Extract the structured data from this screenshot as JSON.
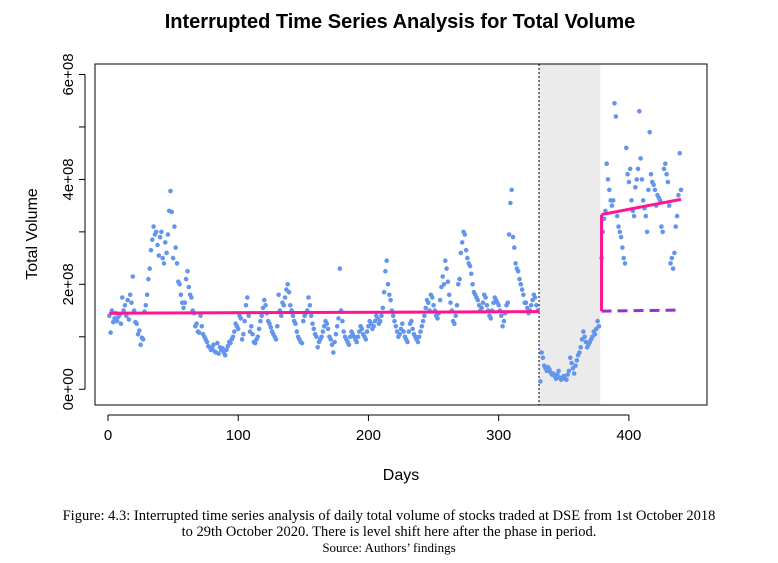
{
  "chart_data": {
    "type": "scatter",
    "title": "Interrupted Time Series Analysis for Total Volume",
    "xlabel": "Days",
    "ylabel": "Total Volume",
    "xlim": [
      -10,
      460
    ],
    "ylim": [
      -30000000,
      620000000
    ],
    "x_ticks": [
      0,
      100,
      200,
      300,
      400
    ],
    "x_tick_labels": [
      "0",
      "100",
      "200",
      "300",
      "400"
    ],
    "y_ticks": [
      0,
      200000000,
      400000000,
      600000000
    ],
    "y_tick_labels": [
      "0e+00",
      "2e+08",
      "4e+08",
      "6e+08"
    ],
    "intervention_start": 331,
    "intervention_end": 378,
    "point_color": "#6495ED",
    "fit_color": "#FF1493",
    "counterfactual_color": "#9932CC",
    "shade_color": "#EBEBEB",
    "points": [
      [
        1,
        140
      ],
      [
        2,
        108
      ],
      [
        3,
        150
      ],
      [
        4,
        128
      ],
      [
        5,
        135
      ],
      [
        6,
        145
      ],
      [
        7,
        130
      ],
      [
        8,
        138
      ],
      [
        9,
        142
      ],
      [
        10,
        125
      ],
      [
        11,
        175
      ],
      [
        12,
        150
      ],
      [
        13,
        160
      ],
      [
        14,
        140
      ],
      [
        15,
        170
      ],
      [
        16,
        133
      ],
      [
        17,
        180
      ],
      [
        18,
        165
      ],
      [
        19,
        215
      ],
      [
        20,
        150
      ],
      [
        21,
        128
      ],
      [
        22,
        125
      ],
      [
        23,
        105
      ],
      [
        24,
        112
      ],
      [
        25,
        85
      ],
      [
        26,
        98
      ],
      [
        27,
        95
      ],
      [
        28,
        148
      ],
      [
        29,
        160
      ],
      [
        30,
        180
      ],
      [
        31,
        210
      ],
      [
        32,
        230
      ],
      [
        33,
        265
      ],
      [
        34,
        285
      ],
      [
        35,
        310
      ],
      [
        36,
        295
      ],
      [
        37,
        300
      ],
      [
        38,
        275
      ],
      [
        39,
        255
      ],
      [
        40,
        290
      ],
      [
        41,
        300
      ],
      [
        42,
        250
      ],
      [
        43,
        240
      ],
      [
        44,
        280
      ],
      [
        45,
        260
      ],
      [
        46,
        295
      ],
      [
        47,
        340
      ],
      [
        48,
        378
      ],
      [
        49,
        338
      ],
      [
        50,
        250
      ],
      [
        51,
        310
      ],
      [
        52,
        270
      ],
      [
        53,
        240
      ],
      [
        54,
        205
      ],
      [
        55,
        200
      ],
      [
        56,
        180
      ],
      [
        57,
        165
      ],
      [
        58,
        155
      ],
      [
        59,
        165
      ],
      [
        60,
        210
      ],
      [
        61,
        225
      ],
      [
        62,
        195
      ],
      [
        63,
        180
      ],
      [
        64,
        175
      ],
      [
        65,
        150
      ],
      [
        66,
        145
      ],
      [
        67,
        120
      ],
      [
        68,
        125
      ],
      [
        69,
        110
      ],
      [
        70,
        108
      ],
      [
        71,
        140
      ],
      [
        72,
        120
      ],
      [
        73,
        105
      ],
      [
        74,
        100
      ],
      [
        75,
        95
      ],
      [
        76,
        90
      ],
      [
        77,
        82
      ],
      [
        78,
        80
      ],
      [
        79,
        75
      ],
      [
        80,
        78
      ],
      [
        81,
        85
      ],
      [
        82,
        72
      ],
      [
        83,
        70
      ],
      [
        84,
        88
      ],
      [
        85,
        68
      ],
      [
        86,
        80
      ],
      [
        87,
        75
      ],
      [
        88,
        78
      ],
      [
        89,
        70
      ],
      [
        90,
        65
      ],
      [
        91,
        75
      ],
      [
        92,
        82
      ],
      [
        93,
        90
      ],
      [
        94,
        88
      ],
      [
        95,
        95
      ],
      [
        96,
        100
      ],
      [
        97,
        110
      ],
      [
        98,
        125
      ],
      [
        99,
        120
      ],
      [
        100,
        115
      ],
      [
        101,
        140
      ],
      [
        102,
        135
      ],
      [
        103,
        95
      ],
      [
        104,
        105
      ],
      [
        105,
        130
      ],
      [
        106,
        160
      ],
      [
        107,
        175
      ],
      [
        108,
        140
      ],
      [
        109,
        110
      ],
      [
        110,
        120
      ],
      [
        111,
        105
      ],
      [
        112,
        90
      ],
      [
        113,
        88
      ],
      [
        114,
        95
      ],
      [
        115,
        100
      ],
      [
        116,
        115
      ],
      [
        117,
        130
      ],
      [
        118,
        140
      ],
      [
        119,
        155
      ],
      [
        120,
        170
      ],
      [
        121,
        160
      ],
      [
        122,
        145
      ],
      [
        123,
        130
      ],
      [
        124,
        125
      ],
      [
        125,
        118
      ],
      [
        126,
        110
      ],
      [
        127,
        105
      ],
      [
        128,
        100
      ],
      [
        129,
        95
      ],
      [
        130,
        120
      ],
      [
        131,
        180
      ],
      [
        132,
        150
      ],
      [
        133,
        140
      ],
      [
        134,
        165
      ],
      [
        135,
        160
      ],
      [
        136,
        175
      ],
      [
        137,
        190
      ],
      [
        138,
        200
      ],
      [
        139,
        185
      ],
      [
        140,
        160
      ],
      [
        141,
        150
      ],
      [
        142,
        140
      ],
      [
        143,
        130
      ],
      [
        144,
        125
      ],
      [
        145,
        110
      ],
      [
        146,
        100
      ],
      [
        147,
        95
      ],
      [
        148,
        90
      ],
      [
        149,
        88
      ],
      [
        150,
        130
      ],
      [
        151,
        140
      ],
      [
        152,
        145
      ],
      [
        153,
        150
      ],
      [
        154,
        175
      ],
      [
        155,
        160
      ],
      [
        156,
        140
      ],
      [
        157,
        125
      ],
      [
        158,
        115
      ],
      [
        159,
        105
      ],
      [
        160,
        100
      ],
      [
        161,
        80
      ],
      [
        162,
        90
      ],
      [
        163,
        95
      ],
      [
        164,
        100
      ],
      [
        165,
        110
      ],
      [
        166,
        120
      ],
      [
        167,
        130
      ],
      [
        168,
        125
      ],
      [
        169,
        115
      ],
      [
        170,
        100
      ],
      [
        171,
        95
      ],
      [
        172,
        85
      ],
      [
        173,
        70
      ],
      [
        174,
        90
      ],
      [
        175,
        105
      ],
      [
        176,
        120
      ],
      [
        177,
        135
      ],
      [
        178,
        230
      ],
      [
        179,
        150
      ],
      [
        180,
        130
      ],
      [
        181,
        110
      ],
      [
        182,
        100
      ],
      [
        183,
        95
      ],
      [
        184,
        90
      ],
      [
        185,
        85
      ],
      [
        186,
        100
      ],
      [
        187,
        110
      ],
      [
        188,
        105
      ],
      [
        189,
        100
      ],
      [
        190,
        95
      ],
      [
        191,
        90
      ],
      [
        192,
        100
      ],
      [
        193,
        110
      ],
      [
        194,
        120
      ],
      [
        195,
        115
      ],
      [
        196,
        105
      ],
      [
        197,
        100
      ],
      [
        198,
        95
      ],
      [
        199,
        110
      ],
      [
        200,
        120
      ],
      [
        201,
        130
      ],
      [
        202,
        125
      ],
      [
        203,
        115
      ],
      [
        204,
        120
      ],
      [
        205,
        130
      ],
      [
        206,
        140
      ],
      [
        207,
        135
      ],
      [
        208,
        125
      ],
      [
        209,
        130
      ],
      [
        210,
        140
      ],
      [
        211,
        155
      ],
      [
        212,
        185
      ],
      [
        213,
        225
      ],
      [
        214,
        245
      ],
      [
        215,
        200
      ],
      [
        216,
        180
      ],
      [
        217,
        170
      ],
      [
        218,
        150
      ],
      [
        219,
        140
      ],
      [
        220,
        130
      ],
      [
        221,
        120
      ],
      [
        222,
        110
      ],
      [
        223,
        100
      ],
      [
        224,
        105
      ],
      [
        225,
        115
      ],
      [
        226,
        125
      ],
      [
        227,
        110
      ],
      [
        228,
        100
      ],
      [
        229,
        95
      ],
      [
        230,
        90
      ],
      [
        231,
        110
      ],
      [
        232,
        125
      ],
      [
        233,
        130
      ],
      [
        234,
        115
      ],
      [
        235,
        105
      ],
      [
        236,
        100
      ],
      [
        237,
        95
      ],
      [
        238,
        90
      ],
      [
        239,
        100
      ],
      [
        240,
        110
      ],
      [
        241,
        120
      ],
      [
        242,
        130
      ],
      [
        243,
        140
      ],
      [
        244,
        155
      ],
      [
        245,
        170
      ],
      [
        246,
        165
      ],
      [
        247,
        150
      ],
      [
        248,
        180
      ],
      [
        249,
        175
      ],
      [
        250,
        160
      ],
      [
        251,
        150
      ],
      [
        252,
        140
      ],
      [
        253,
        135
      ],
      [
        254,
        145
      ],
      [
        255,
        170
      ],
      [
        256,
        195
      ],
      [
        257,
        215
      ],
      [
        258,
        200
      ],
      [
        259,
        245
      ],
      [
        260,
        230
      ],
      [
        261,
        205
      ],
      [
        262,
        180
      ],
      [
        263,
        165
      ],
      [
        264,
        150
      ],
      [
        265,
        130
      ],
      [
        266,
        125
      ],
      [
        267,
        140
      ],
      [
        268,
        160
      ],
      [
        269,
        200
      ],
      [
        270,
        210
      ],
      [
        271,
        260
      ],
      [
        272,
        280
      ],
      [
        273,
        300
      ],
      [
        274,
        295
      ],
      [
        275,
        265
      ],
      [
        276,
        250
      ],
      [
        277,
        240
      ],
      [
        278,
        235
      ],
      [
        279,
        220
      ],
      [
        280,
        200
      ],
      [
        281,
        185
      ],
      [
        282,
        180
      ],
      [
        283,
        175
      ],
      [
        284,
        170
      ],
      [
        285,
        160
      ],
      [
        286,
        150
      ],
      [
        287,
        155
      ],
      [
        288,
        165
      ],
      [
        289,
        180
      ],
      [
        290,
        175
      ],
      [
        291,
        160
      ],
      [
        292,
        150
      ],
      [
        293,
        140
      ],
      [
        294,
        135
      ],
      [
        295,
        150
      ],
      [
        296,
        165
      ],
      [
        297,
        175
      ],
      [
        298,
        170
      ],
      [
        299,
        165
      ],
      [
        300,
        160
      ],
      [
        301,
        150
      ],
      [
        302,
        140
      ],
      [
        303,
        120
      ],
      [
        304,
        130
      ],
      [
        305,
        145
      ],
      [
        306,
        160
      ],
      [
        307,
        165
      ],
      [
        308,
        295
      ],
      [
        309,
        355
      ],
      [
        310,
        380
      ],
      [
        311,
        290
      ],
      [
        312,
        270
      ],
      [
        313,
        240
      ],
      [
        314,
        230
      ],
      [
        315,
        225
      ],
      [
        316,
        210
      ],
      [
        317,
        200
      ],
      [
        318,
        190
      ],
      [
        319,
        180
      ],
      [
        320,
        165
      ],
      [
        321,
        165
      ],
      [
        322,
        155
      ],
      [
        323,
        145
      ],
      [
        324,
        150
      ],
      [
        325,
        160
      ],
      [
        326,
        170
      ],
      [
        327,
        180
      ],
      [
        328,
        175
      ],
      [
        329,
        160
      ],
      [
        330,
        150
      ],
      [
        332,
        15
      ],
      [
        333,
        70
      ],
      [
        334,
        60
      ],
      [
        335,
        45
      ],
      [
        336,
        40
      ],
      [
        337,
        35
      ],
      [
        338,
        42
      ],
      [
        339,
        38
      ],
      [
        340,
        32
      ],
      [
        341,
        28
      ],
      [
        342,
        30
      ],
      [
        343,
        25
      ],
      [
        344,
        20
      ],
      [
        345,
        28
      ],
      [
        346,
        35
      ],
      [
        347,
        22
      ],
      [
        348,
        18
      ],
      [
        349,
        22
      ],
      [
        350,
        25
      ],
      [
        351,
        20
      ],
      [
        352,
        18
      ],
      [
        353,
        28
      ],
      [
        354,
        35
      ],
      [
        355,
        60
      ],
      [
        356,
        50
      ],
      [
        357,
        40
      ],
      [
        358,
        30
      ],
      [
        359,
        45
      ],
      [
        360,
        55
      ],
      [
        361,
        65
      ],
      [
        362,
        70
      ],
      [
        363,
        80
      ],
      [
        364,
        95
      ],
      [
        365,
        110
      ],
      [
        366,
        100
      ],
      [
        367,
        90
      ],
      [
        368,
        80
      ],
      [
        369,
        85
      ],
      [
        370,
        90
      ],
      [
        371,
        95
      ],
      [
        372,
        100
      ],
      [
        373,
        110
      ],
      [
        374,
        105
      ],
      [
        375,
        115
      ],
      [
        376,
        130
      ],
      [
        377,
        120
      ],
      [
        379,
        250
      ],
      [
        380,
        300
      ],
      [
        381,
        325
      ],
      [
        382,
        340
      ],
      [
        383,
        430
      ],
      [
        384,
        400
      ],
      [
        385,
        380
      ],
      [
        386,
        360
      ],
      [
        387,
        350
      ],
      [
        388,
        360
      ],
      [
        389,
        545
      ],
      [
        390,
        520
      ],
      [
        391,
        330
      ],
      [
        392,
        310
      ],
      [
        393,
        300
      ],
      [
        394,
        290
      ],
      [
        395,
        270
      ],
      [
        396,
        250
      ],
      [
        397,
        240
      ],
      [
        398,
        460
      ],
      [
        399,
        410
      ],
      [
        400,
        395
      ],
      [
        401,
        420
      ],
      [
        402,
        360
      ],
      [
        403,
        340
      ],
      [
        404,
        330
      ],
      [
        405,
        385
      ],
      [
        406,
        400
      ],
      [
        407,
        420
      ],
      [
        408,
        530
      ],
      [
        409,
        440
      ],
      [
        410,
        400
      ],
      [
        411,
        360
      ],
      [
        412,
        345
      ],
      [
        413,
        330
      ],
      [
        414,
        300
      ],
      [
        415,
        380
      ],
      [
        416,
        490
      ],
      [
        417,
        410
      ],
      [
        418,
        395
      ],
      [
        419,
        390
      ],
      [
        420,
        380
      ],
      [
        421,
        350
      ],
      [
        422,
        370
      ],
      [
        423,
        365
      ],
      [
        424,
        360
      ],
      [
        425,
        310
      ],
      [
        426,
        300
      ],
      [
        427,
        420
      ],
      [
        428,
        430
      ],
      [
        429,
        410
      ],
      [
        430,
        395
      ],
      [
        431,
        350
      ],
      [
        432,
        240
      ],
      [
        433,
        250
      ],
      [
        434,
        230
      ],
      [
        435,
        260
      ],
      [
        436,
        310
      ],
      [
        437,
        330
      ],
      [
        438,
        370
      ],
      [
        439,
        450
      ],
      [
        440,
        380
      ]
    ],
    "fit_pre": [
      [
        1,
        145
      ],
      [
        331,
        148
      ]
    ],
    "fit_post": [
      [
        379,
        333
      ],
      [
        440,
        362
      ]
    ],
    "counterfactual": [
      [
        379,
        149
      ],
      [
        440,
        151
      ]
    ],
    "points_units": "millions"
  },
  "caption": {
    "line1": "Figure: 4.3: Interrupted time series analysis of daily total volume of stocks traded at DSE from 1st October 2018",
    "line2": "to 29th October 2020. There is level shift here after the phase in period.",
    "source": "Source: Authors’ findings"
  }
}
